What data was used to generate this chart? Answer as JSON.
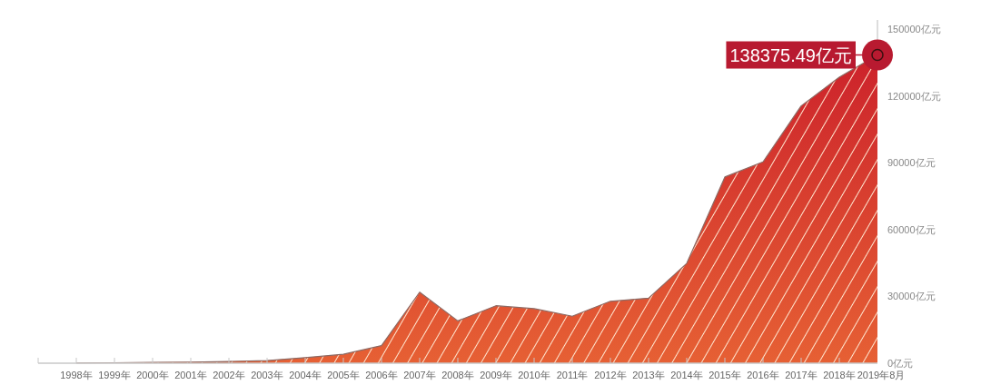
{
  "chart_data": {
    "type": "area",
    "categories": [
      "1998年",
      "1999年",
      "2000年",
      "2001年",
      "2002年",
      "2003年",
      "2004年",
      "2005年",
      "2006年",
      "2007年",
      "2008年",
      "2009年",
      "2010年",
      "2011年",
      "2012年",
      "2013年",
      "2014年",
      "2015年",
      "2016年",
      "2017年",
      "2018年",
      "2019年8月"
    ],
    "series": [
      {
        "color": "#d8302f",
        "values": [
          100,
          200,
          400,
          500,
          800,
          1200,
          2500,
          4000,
          7900,
          31900,
          19000,
          25800,
          24500,
          21100,
          27800,
          29200,
          44800,
          83600,
          90400,
          115500,
          128400,
          138375.49
        ]
      }
    ],
    "ylim": [
      0,
      150000
    ],
    "yticks": [
      {
        "value": 0,
        "label": "0亿元"
      },
      {
        "value": 30000,
        "label": "30000亿元"
      },
      {
        "value": 60000,
        "label": "60000亿元"
      },
      {
        "value": 90000,
        "label": "90000亿元"
      },
      {
        "value": 120000,
        "label": "120000亿元"
      },
      {
        "value": 150000,
        "label": "150000亿元"
      }
    ],
    "annotations": [
      {
        "text": "138375.49亿元",
        "x": "2019年8月",
        "y": 138375.49
      }
    ]
  }
}
